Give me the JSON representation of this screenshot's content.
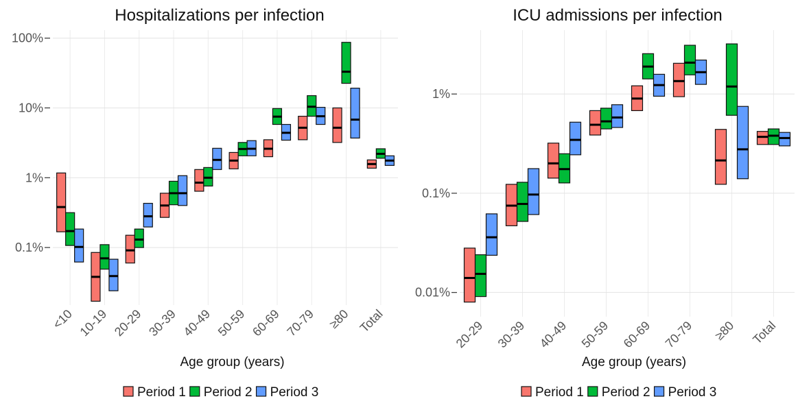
{
  "chart_data": [
    {
      "type": "crossbar",
      "title": "Hospitalizations per infection",
      "xlabel": "Age group (years)",
      "categories": [
        "<10",
        "10-19",
        "20-29",
        "30-39",
        "40-49",
        "50-59",
        "60-69",
        "70-79",
        "≥80",
        "Total"
      ],
      "log_scale": true,
      "grid": true,
      "legend": "bottom",
      "ylim": [
        0.015,
        130
      ],
      "yticks": [
        {
          "value": 0.1,
          "label": "0.1%"
        },
        {
          "value": 1,
          "label": "1%"
        },
        {
          "value": 10,
          "label": "10%"
        },
        {
          "value": 100,
          "label": "100%"
        }
      ],
      "series": [
        {
          "name": "Period 1",
          "color": "#F8766D",
          "values": [
            0.38,
            0.038,
            0.091,
            0.4,
            0.85,
            1.76,
            2.6,
            5.2,
            5.2,
            1.57
          ],
          "low": [
            0.168,
            0.017,
            0.06,
            0.27,
            0.64,
            1.34,
            2.0,
            3.5,
            3.2,
            1.37
          ],
          "high": [
            1.17,
            0.085,
            0.15,
            0.6,
            1.31,
            2.3,
            3.5,
            7.6,
            10,
            1.8
          ]
        },
        {
          "name": "Period 2",
          "color": "#00BA38",
          "values": [
            0.172,
            0.07,
            0.13,
            0.6,
            1.0,
            2.58,
            7.5,
            10.4,
            33,
            2.2
          ],
          "low": [
            0.107,
            0.049,
            0.1,
            0.41,
            0.76,
            2.06,
            5.8,
            7.6,
            22.5,
            1.9
          ],
          "high": [
            0.316,
            0.11,
            0.184,
            0.89,
            1.4,
            3.2,
            9.8,
            15,
            87,
            2.6
          ]
        },
        {
          "name": "Period 3",
          "color": "#619CFF",
          "values": [
            0.102,
            0.039,
            0.28,
            0.6,
            1.8,
            2.6,
            4.4,
            7.6,
            6.8,
            1.76
          ],
          "low": [
            0.062,
            0.024,
            0.197,
            0.4,
            1.31,
            2.06,
            3.45,
            5.8,
            3.7,
            1.5
          ],
          "high": [
            0.184,
            0.068,
            0.43,
            1.07,
            2.64,
            3.4,
            5.8,
            10.2,
            19.2,
            2.06
          ]
        }
      ]
    },
    {
      "type": "crossbar",
      "title": "ICU admissions per infection",
      "xlabel": "Age group (years)",
      "categories": [
        "20-29",
        "30-39",
        "40-49",
        "50-59",
        "60-69",
        "70-79",
        "≥80",
        "Total"
      ],
      "log_scale": true,
      "grid": true,
      "legend": "bottom",
      "ylim": [
        0.0057,
        4.4
      ],
      "yticks": [
        {
          "value": 0.01,
          "label": "0.01%"
        },
        {
          "value": 0.1,
          "label": "0.1%"
        },
        {
          "value": 1,
          "label": "1%"
        }
      ],
      "series": [
        {
          "name": "Period 1",
          "color": "#F8766D",
          "values": [
            0.014,
            0.075,
            0.2,
            0.49,
            0.9,
            1.35,
            0.214,
            0.37
          ],
          "low": [
            0.008,
            0.047,
            0.142,
            0.386,
            0.68,
            0.94,
            0.123,
            0.31
          ],
          "high": [
            0.028,
            0.123,
            0.32,
            0.68,
            1.21,
            2.04,
            0.44,
            0.42
          ]
        },
        {
          "name": "Period 2",
          "color": "#00BA38",
          "values": [
            0.0154,
            0.078,
            0.175,
            0.53,
            1.89,
            2.07,
            1.19,
            0.38
          ],
          "low": [
            0.0091,
            0.052,
            0.127,
            0.445,
            1.42,
            1.56,
            0.61,
            0.31
          ],
          "high": [
            0.024,
            0.129,
            0.25,
            0.72,
            2.55,
            3.1,
            3.2,
            0.445
          ]
        },
        {
          "name": "Period 3",
          "color": "#619CFF",
          "values": [
            0.036,
            0.097,
            0.345,
            0.58,
            1.23,
            1.66,
            0.277,
            0.36
          ],
          "low": [
            0.0237,
            0.061,
            0.244,
            0.46,
            0.95,
            1.25,
            0.14,
            0.3
          ],
          "high": [
            0.062,
            0.177,
            0.52,
            0.78,
            1.58,
            2.2,
            0.75,
            0.41
          ]
        }
      ]
    }
  ]
}
